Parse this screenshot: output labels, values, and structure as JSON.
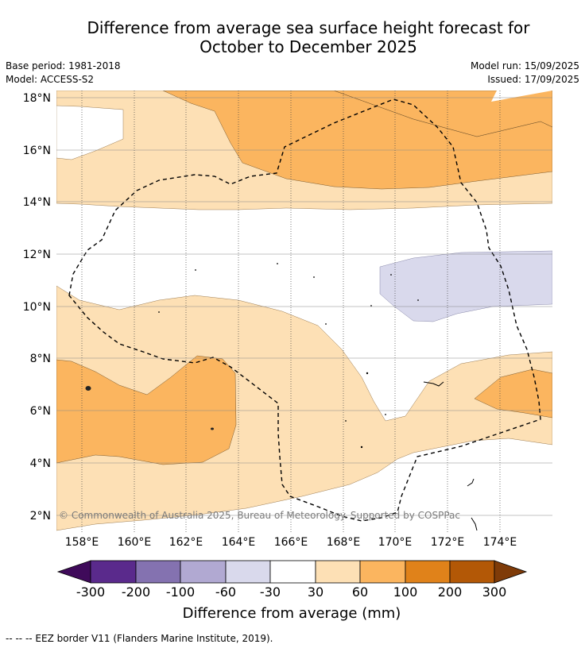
{
  "title": {
    "line1": "Difference from average sea surface height forecast for",
    "line2": "October to December 2025"
  },
  "meta": {
    "base_period": "Base period: 1981-2018",
    "model": "Model: ACCESS-S2",
    "model_run": "Model run: 15/09/2025",
    "issued": "Issued: 17/09/2025"
  },
  "map": {
    "lon_ticks": [
      "158°E",
      "160°E",
      "162°E",
      "164°E",
      "166°E",
      "168°E",
      "170°E",
      "172°E",
      "174°E"
    ],
    "lat_ticks": [
      "18°N",
      "16°N",
      "14°N",
      "12°N",
      "10°N",
      "8°N",
      "6°N",
      "4°N",
      "2°N"
    ],
    "copyright": "© Commonwealth of Australia 2025, Bureau of Meteorology. Supported by COSPPac"
  },
  "colorbar": {
    "ticks": [
      "-300",
      "-200",
      "-100",
      "-60",
      "-30",
      "30",
      "60",
      "100",
      "200",
      "300"
    ],
    "colors": [
      "#3f0a5a",
      "#5a2a8c",
      "#8472b0",
      "#b1a9d2",
      "#d9d9ec",
      "#ffffff",
      "#fde0b5",
      "#fbb55f",
      "#e0821a",
      "#b35806",
      "#7f3b08"
    ],
    "label": "Difference from average (mm)"
  },
  "footer": {
    "legend_text": "--  --  -- EEZ border V11 (Flanders Marine Institute, 2019)."
  }
}
